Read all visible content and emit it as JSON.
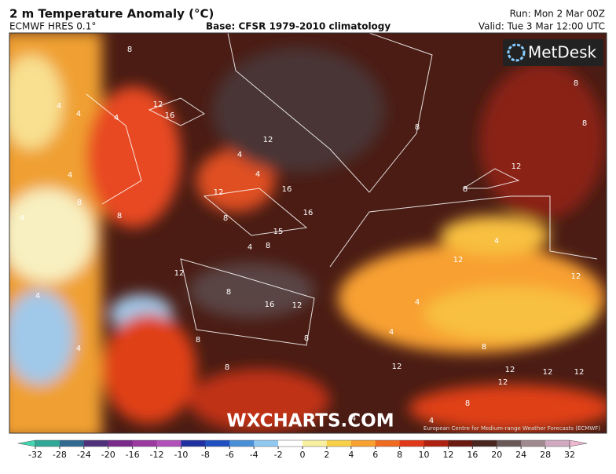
{
  "header": {
    "title": "2 m Temperature Anomaly (°C)",
    "model": "ECMWF HRES 0.1°",
    "base": "Base: CFSR 1979-2010 climatology",
    "run": "Run: Mon 2 Mar 00Z",
    "valid": "Valid: Tue 3 Mar 12:00 UTC"
  },
  "logo": "MetDesk",
  "watermark": "WXCHARTS.COM",
  "credit": "European Centre for Medium-range Weather Forecasts (ECMWF)",
  "contour_labels": [
    8,
    12,
    16,
    4,
    4,
    4,
    4,
    4,
    8,
    8,
    12,
    4,
    4,
    16,
    16,
    12,
    8,
    15,
    8,
    4,
    12,
    8,
    16,
    12,
    4,
    8,
    8,
    12,
    8,
    8,
    12,
    4,
    12,
    4,
    4,
    8,
    8,
    4,
    8,
    12,
    8,
    12,
    12,
    12,
    12,
    8,
    4,
    4
  ],
  "colorbar": {
    "ticks": [
      -32,
      -28,
      -24,
      -20,
      -16,
      -12,
      -10,
      -8,
      -6,
      -4,
      -2,
      0,
      2,
      4,
      6,
      8,
      10,
      12,
      16,
      20,
      24,
      28,
      32
    ],
    "colors": [
      "#40d8b0",
      "#30a898",
      "#306a90",
      "#50307a",
      "#7a2a8a",
      "#9a3aa0",
      "#b050b8",
      "#2030a0",
      "#2050c0",
      "#4a90d8",
      "#90c8f0",
      "#ffffff",
      "#f8f0a0",
      "#f8d048",
      "#f8a030",
      "#f06a20",
      "#e03818",
      "#b02010",
      "#6a1a10",
      "#4a2620",
      "#6a5858",
      "#a08a90",
      "#d0a8c0",
      "#f0b8d0"
    ]
  }
}
